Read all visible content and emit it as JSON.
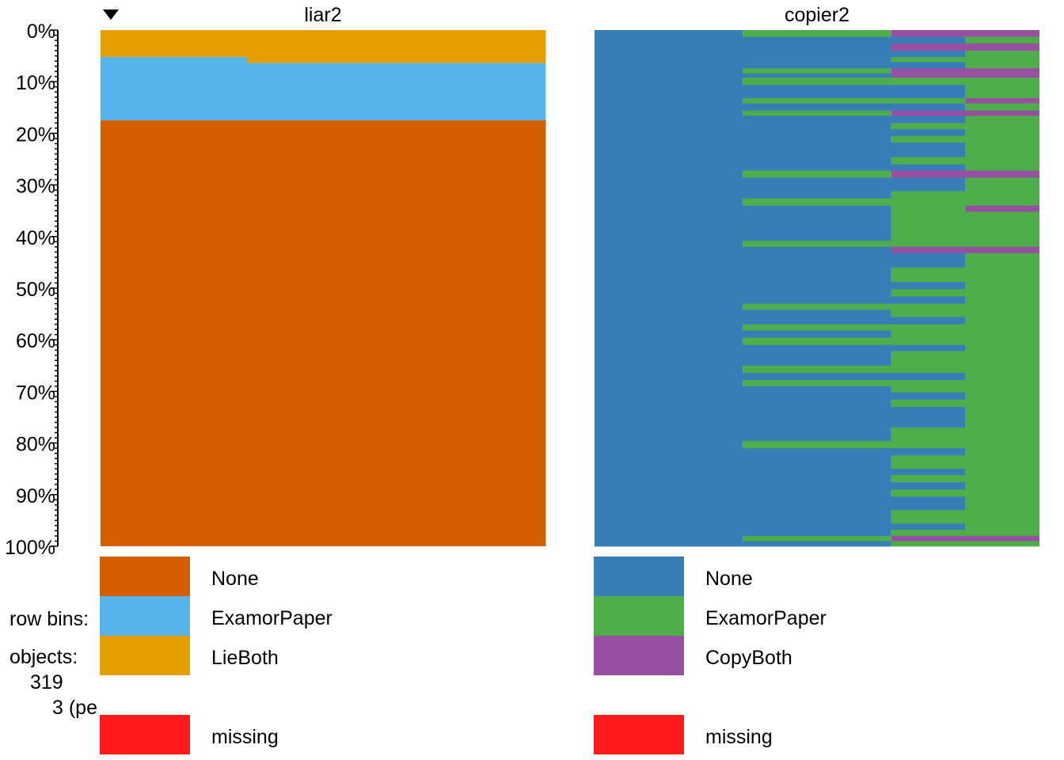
{
  "chart_data": {
    "type": "tableplot",
    "sort_indicator": "descending",
    "y_axis": {
      "ticks": [
        "0%",
        "10%",
        "20%",
        "30%",
        "40%",
        "50%",
        "60%",
        "70%",
        "80%",
        "90%",
        "100%"
      ],
      "range": [
        0,
        100
      ]
    },
    "row_bins_label": "row bins:",
    "objects_label": "objects:",
    "objects_count": "319",
    "bin_size_text": "3 (pe",
    "columns": [
      {
        "name": "liar2",
        "categories": [
          {
            "label": "None",
            "color": "#d55e00"
          },
          {
            "label": "ExamorPaper",
            "color": "#56b4e9"
          },
          {
            "label": "LieBoth",
            "color": "#e69f00"
          }
        ],
        "missing": {
          "label": "missing",
          "color": "#ff1a1a"
        },
        "segments": [
          {
            "start": 0,
            "end": 33,
            "LieBoth": 5.2,
            "ExamorPaper": 12.3
          },
          {
            "start": 33,
            "end": 100,
            "LieBoth": 6.4,
            "ExamorPaper": 11.1
          }
        ]
      },
      {
        "name": "copier2",
        "categories": [
          {
            "label": "None",
            "color": "#377eb8"
          },
          {
            "label": "ExamorPaper",
            "color": "#4daf4a"
          },
          {
            "label": "CopyBoth",
            "color": "#984ea3"
          }
        ],
        "missing": {
          "label": "missing",
          "color": "#ff1a1a"
        },
        "bins": [
          [
            0,
            1.3,
            2,
            0.67,
            0.33
          ],
          [
            1.3,
            2.6,
            4,
            0.67,
            0
          ],
          [
            2.6,
            4.0,
            4,
            0.67,
            0.33
          ],
          [
            4.0,
            5.2,
            4,
            0.67,
            0
          ],
          [
            5.2,
            6.2,
            4,
            0.33,
            0
          ],
          [
            6.2,
            7.4,
            4,
            0.67,
            0
          ],
          [
            7.4,
            8.4,
            2,
            0.67,
            0.33
          ],
          [
            8.4,
            9.2,
            4,
            0.67,
            0.33
          ],
          [
            9.2,
            10.6,
            2,
            0.33,
            0
          ],
          [
            10.6,
            12.0,
            4,
            0.67,
            0
          ],
          [
            12.0,
            13.2,
            4,
            0.67,
            0
          ],
          [
            13.2,
            14.2,
            2,
            0.67,
            0.17
          ],
          [
            14.2,
            15.6,
            4,
            0.67,
            0
          ],
          [
            15.6,
            16.6,
            2,
            0.67,
            0.33
          ],
          [
            16.6,
            18.0,
            4,
            0.67,
            0
          ],
          [
            18.0,
            19.2,
            4,
            0.33,
            0
          ],
          [
            19.2,
            20.5,
            4,
            0.67,
            0
          ],
          [
            20.5,
            21.8,
            4,
            0.33,
            0
          ],
          [
            21.8,
            23.2,
            4,
            0.67,
            0
          ],
          [
            23.2,
            24.6,
            4,
            0.67,
            0
          ],
          [
            24.6,
            26.0,
            4,
            0.33,
            0
          ],
          [
            26.0,
            27.2,
            4,
            0.67,
            0
          ],
          [
            27.2,
            28.6,
            2,
            0.67,
            0.33
          ],
          [
            28.6,
            30.0,
            4,
            0.67,
            0
          ],
          [
            30.0,
            31.2,
            4,
            0.67,
            0
          ],
          [
            31.2,
            32.6,
            4,
            0.33,
            0
          ],
          [
            32.6,
            34.0,
            2,
            0.67,
            0
          ],
          [
            34.0,
            35.2,
            4,
            0.33,
            0.17
          ],
          [
            35.2,
            36.6,
            4,
            0.33,
            0
          ],
          [
            36.6,
            38.0,
            4,
            0.33,
            0
          ],
          [
            38.0,
            39.6,
            4,
            0.33,
            0
          ],
          [
            39.6,
            40.8,
            4,
            0.33,
            0
          ],
          [
            40.8,
            42.0,
            2,
            0.67,
            0
          ],
          [
            42.0,
            43.2,
            4,
            0.67,
            0.33
          ],
          [
            43.2,
            44.6,
            4,
            0.67,
            0
          ],
          [
            44.6,
            46.0,
            4,
            0.67,
            0
          ],
          [
            46.0,
            47.4,
            4,
            0.33,
            0
          ],
          [
            47.4,
            48.8,
            4,
            0.33,
            0
          ],
          [
            48.8,
            50.2,
            4,
            0.67,
            0
          ],
          [
            50.2,
            51.6,
            4,
            0.33,
            0
          ],
          [
            51.6,
            53.0,
            4,
            0.67,
            0
          ],
          [
            53.0,
            54.2,
            2,
            0.33,
            0
          ],
          [
            54.2,
            55.6,
            4,
            0.33,
            0
          ],
          [
            55.6,
            57.0,
            4,
            0.67,
            0
          ],
          [
            57.0,
            58.2,
            2,
            0.67,
            0
          ],
          [
            58.2,
            59.6,
            4,
            0.33,
            0
          ],
          [
            59.6,
            61.0,
            2,
            0.33,
            0
          ],
          [
            61.0,
            62.2,
            4,
            0.67,
            0
          ],
          [
            62.2,
            63.6,
            4,
            0.33,
            0
          ],
          [
            63.6,
            65.0,
            4,
            0.33,
            0
          ],
          [
            65.0,
            66.4,
            2,
            0.33,
            0
          ],
          [
            66.4,
            67.8,
            4,
            0.67,
            0
          ],
          [
            67.8,
            69.0,
            2,
            0.67,
            0
          ],
          [
            69.0,
            70.2,
            4,
            0.33,
            0
          ],
          [
            70.2,
            71.6,
            4,
            0.67,
            0
          ],
          [
            71.6,
            73.0,
            4,
            0.33,
            0
          ],
          [
            73.0,
            74.4,
            4,
            0.67,
            0
          ],
          [
            74.4,
            75.8,
            4,
            0.67,
            0
          ],
          [
            75.8,
            77.0,
            4,
            0.67,
            0
          ],
          [
            77.0,
            78.4,
            4,
            0.33,
            0
          ],
          [
            78.4,
            79.6,
            4,
            0.33,
            0
          ],
          [
            79.6,
            81.0,
            2,
            0.67,
            0
          ],
          [
            81.0,
            82.4,
            4,
            0.67,
            0
          ],
          [
            82.4,
            83.8,
            4,
            0.33,
            0
          ],
          [
            83.8,
            85.0,
            4,
            0.33,
            0
          ],
          [
            85.0,
            86.2,
            4,
            0.67,
            0
          ],
          [
            86.2,
            87.6,
            4,
            0.33,
            0
          ],
          [
            87.6,
            89.0,
            4,
            0.67,
            0
          ],
          [
            89.0,
            90.4,
            4,
            0.33,
            0
          ],
          [
            90.4,
            91.8,
            4,
            0.67,
            0
          ],
          [
            91.8,
            93.0,
            4,
            0.67,
            0
          ],
          [
            93.0,
            94.4,
            4,
            0.33,
            0
          ],
          [
            94.4,
            95.6,
            4,
            0.33,
            0
          ],
          [
            95.6,
            96.8,
            4,
            0.67,
            0
          ],
          [
            96.8,
            98.0,
            4,
            0.33,
            0
          ],
          [
            98.0,
            99.0,
            2,
            0.67,
            0.33
          ],
          [
            99.0,
            100,
            4,
            0.33,
            0
          ]
        ]
      }
    ]
  }
}
